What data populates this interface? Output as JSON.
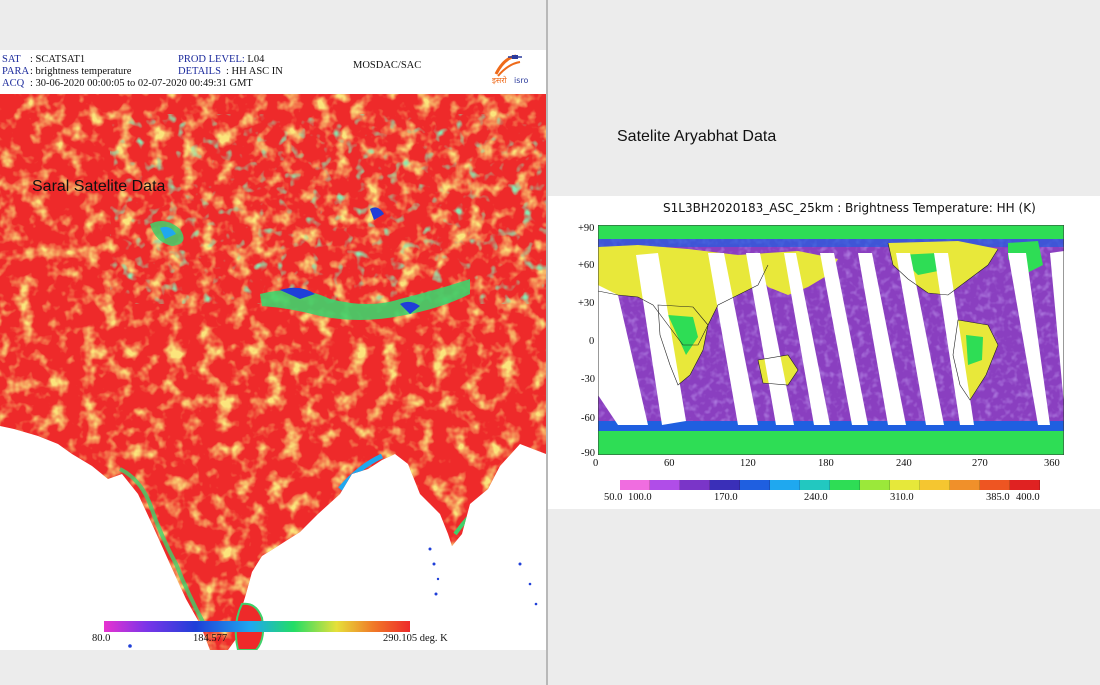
{
  "left_panel": {
    "header": {
      "sat_key": "SAT",
      "sat_value": ": SCATSAT1",
      "para_key": "PARA",
      "para_value": ": brightness temperature",
      "acq_key": "ACQ",
      "acq_value": ": 30-06-2020 00:00:05 to 02-07-2020 00:49:31 GMT",
      "prod_level_key": "PROD LEVEL:",
      "prod_level_value": "L04",
      "details_key": "DETAILS",
      "details_value": ":    HH ASC IN",
      "org": "MOSDAC/SAC",
      "logo_text": "इसरो isro"
    },
    "caption": "Saral Satelite Data",
    "colorbar": {
      "labels": [
        "80.0",
        "184.577",
        "290.105 deg. K"
      ],
      "colors": [
        "#e832d0",
        "#7a35e8",
        "#1f3fd8",
        "#1fa8ef",
        "#22dd66",
        "#e6e03a",
        "#f07a28",
        "#ee2a2a"
      ]
    },
    "colors": {
      "land_hot": "#ee2a2a",
      "warm": "#f5a623",
      "mid": "#e6e03a",
      "cool": "#3fd16a",
      "cold": "#1f3fd8"
    }
  },
  "right_panel": {
    "caption": "Satelite Aryabhat Data",
    "title": "S1L3BH2020183_ASC_25km : Brightness Temperature: HH (K)",
    "y_ticks": [
      "+90",
      "+60",
      "+30",
      "0",
      "-30",
      "-60",
      "-90"
    ],
    "x_ticks": [
      "0",
      "60",
      "120",
      "180",
      "240",
      "270",
      "360"
    ],
    "colorbar": {
      "labels": [
        "50.0",
        "100.0",
        "170.0",
        "240.0",
        "310.0",
        "385.0",
        "400.0"
      ],
      "colors": [
        "#f06de0",
        "#b04de8",
        "#7a35c8",
        "#3a2fb8",
        "#1f5fe0",
        "#1fa8ef",
        "#22c8c0",
        "#2edd55",
        "#9be83a",
        "#e6e83a",
        "#f5c630",
        "#f0902a",
        "#ee5522",
        "#e02222"
      ]
    },
    "colors": {
      "ocean": "#8a3fc0",
      "land": "#e8e83a",
      "ice": "#2edd55",
      "swath_gap": "#ffffff"
    }
  }
}
